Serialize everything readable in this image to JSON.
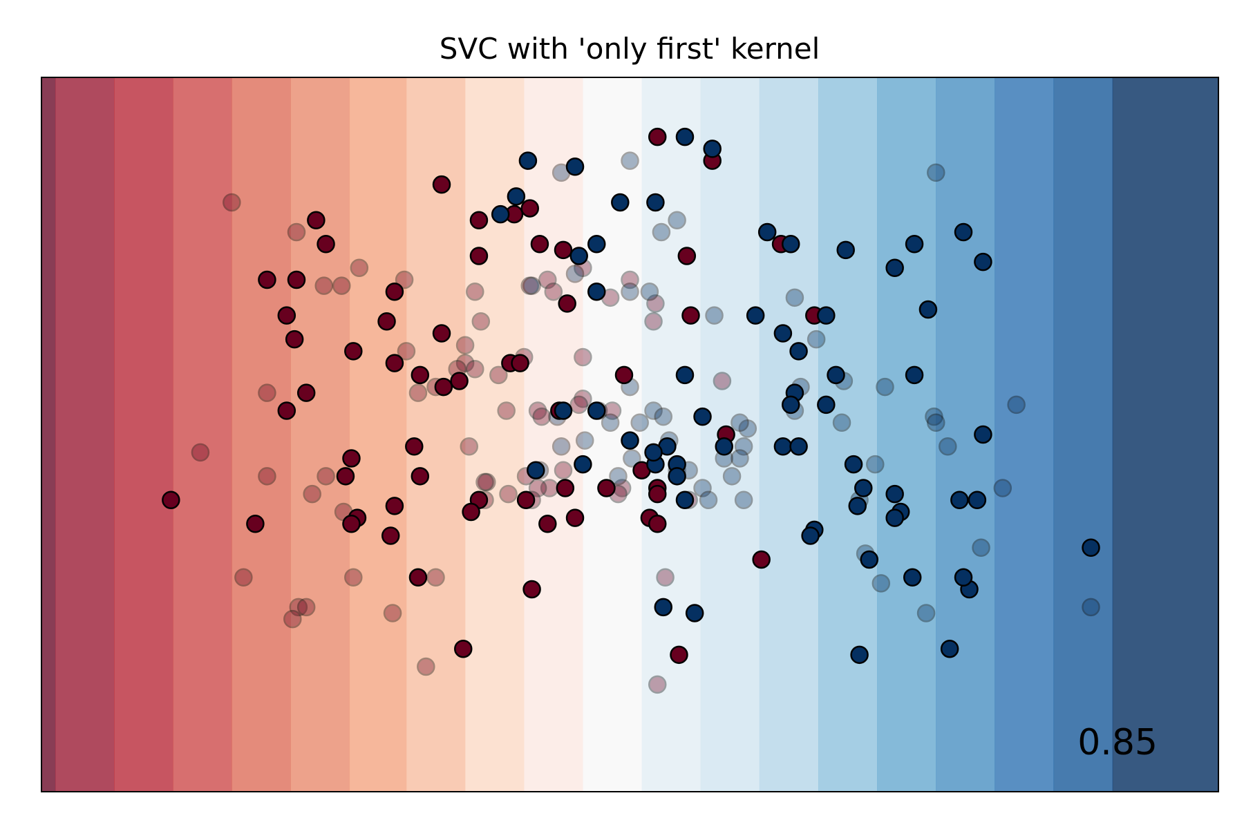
{
  "chart_data": {
    "type": "scatter",
    "title": "SVC with 'only first' kernel",
    "xlabel": "",
    "ylabel": "",
    "show_ticks": false,
    "grid": false,
    "xlim": [
      -3.0,
      3.0
    ],
    "ylim": [
      -3.0,
      3.0
    ],
    "score_text": "0.85",
    "score_position": "bottom-right",
    "background": {
      "kind": "filled-contour",
      "colormap": "RdBu",
      "varies_along": "x",
      "bands": [
        {
          "x0": -3.0,
          "x1": -2.93,
          "color": "#6b0d2a"
        },
        {
          "x0": -2.93,
          "x1": -2.63,
          "color": "#9b1d36"
        },
        {
          "x0": -2.63,
          "x1": -2.33,
          "color": "#b92b3a"
        },
        {
          "x0": -2.33,
          "x1": -2.03,
          "color": "#cd4b4b"
        },
        {
          "x0": -2.03,
          "x1": -1.73,
          "color": "#dd6e5a"
        },
        {
          "x0": -1.73,
          "x1": -1.43,
          "color": "#e98b6e"
        },
        {
          "x0": -1.43,
          "x1": -1.14,
          "color": "#f4a582"
        },
        {
          "x0": -1.14,
          "x1": -0.84,
          "color": "#f7bea1"
        },
        {
          "x0": -0.84,
          "x1": -0.54,
          "color": "#fbd9c6"
        },
        {
          "x0": -0.54,
          "x1": -0.24,
          "color": "#fbe9e2"
        },
        {
          "x0": -0.24,
          "x1": 0.06,
          "color": "#f7f7f7"
        },
        {
          "x0": 0.06,
          "x1": 0.36,
          "color": "#e2edf4"
        },
        {
          "x0": 0.36,
          "x1": 0.66,
          "color": "#d1e5f0"
        },
        {
          "x0": 0.66,
          "x1": 0.96,
          "color": "#b5d6e8"
        },
        {
          "x0": 0.96,
          "x1": 1.26,
          "color": "#8fc2dd"
        },
        {
          "x0": 1.26,
          "x1": 1.56,
          "color": "#67a9cf"
        },
        {
          "x0": 1.56,
          "x1": 1.86,
          "color": "#4a90c2"
        },
        {
          "x0": 1.86,
          "x1": 2.16,
          "color": "#2f73b3"
        },
        {
          "x0": 2.16,
          "x1": 2.46,
          "color": "#195a9a"
        },
        {
          "x0": 2.46,
          "x1": 3.0,
          "color": "#053061"
        }
      ],
      "opacity": 0.8
    },
    "series": [
      {
        "set": "train",
        "class": 0,
        "color": "#67001f",
        "opacity": 1.0,
        "points": [
          [
            0.14,
            2.5
          ],
          [
            -0.96,
            2.1
          ],
          [
            -1.6,
            1.8
          ],
          [
            -1.55,
            1.6
          ],
          [
            -1.7,
            1.3
          ],
          [
            -1.85,
            1.3
          ],
          [
            -1.2,
            1.2
          ],
          [
            -0.77,
            1.8
          ],
          [
            -0.77,
            1.5
          ],
          [
            -0.59,
            1.85
          ],
          [
            -0.51,
            1.9
          ],
          [
            -0.46,
            1.6
          ],
          [
            -0.34,
            1.55
          ],
          [
            -0.32,
            1.1
          ],
          [
            0.29,
            1.5
          ],
          [
            0.42,
            2.3
          ],
          [
            0.77,
            1.6
          ],
          [
            0.31,
            1.0
          ],
          [
            0.94,
            1.0
          ],
          [
            -1.75,
            1.0
          ],
          [
            -1.71,
            0.8
          ],
          [
            -1.24,
            0.95
          ],
          [
            -0.96,
            0.85
          ],
          [
            -1.41,
            0.7
          ],
          [
            -1.2,
            0.6
          ],
          [
            -1.07,
            0.5
          ],
          [
            -0.61,
            0.6
          ],
          [
            -0.95,
            0.4
          ],
          [
            -0.87,
            0.45
          ],
          [
            -0.56,
            0.6
          ],
          [
            -0.03,
            0.5
          ],
          [
            -0.36,
            0.2
          ],
          [
            -1.75,
            0.2
          ],
          [
            -1.65,
            0.35
          ],
          [
            -1.42,
            -0.2
          ],
          [
            -1.1,
            -0.1
          ],
          [
            -1.45,
            -0.35
          ],
          [
            -1.07,
            -0.35
          ],
          [
            -0.33,
            -0.45
          ],
          [
            -0.12,
            -0.45
          ],
          [
            -0.77,
            -0.55
          ],
          [
            -0.53,
            -0.55
          ],
          [
            0.06,
            -0.3
          ],
          [
            0.14,
            -0.45
          ],
          [
            0.14,
            -0.5
          ],
          [
            0.1,
            -0.7
          ],
          [
            0.14,
            -0.75
          ],
          [
            -2.34,
            -0.55
          ],
          [
            -1.91,
            -0.75
          ],
          [
            -1.39,
            -0.7
          ],
          [
            -1.42,
            -0.75
          ],
          [
            -1.2,
            -0.6
          ],
          [
            -1.22,
            -0.85
          ],
          [
            -0.81,
            -0.65
          ],
          [
            -0.28,
            -0.7
          ],
          [
            -0.42,
            -0.75
          ],
          [
            0.49,
            0.0
          ],
          [
            -1.08,
            -1.2
          ],
          [
            -0.5,
            -1.3
          ],
          [
            -0.85,
            -1.8
          ],
          [
            0.25,
            -1.85
          ],
          [
            0.67,
            -1.05
          ]
        ]
      },
      {
        "set": "train",
        "class": 1,
        "color": "#053061",
        "opacity": 1.0,
        "points": [
          [
            0.28,
            2.5
          ],
          [
            -0.05,
            1.95
          ],
          [
            0.13,
            1.95
          ],
          [
            -0.28,
            2.25
          ],
          [
            0.7,
            1.7
          ],
          [
            0.82,
            1.6
          ],
          [
            1.1,
            1.55
          ],
          [
            0.64,
            1.0
          ],
          [
            1.0,
            1.0
          ],
          [
            1.45,
            1.6
          ],
          [
            1.35,
            1.4
          ],
          [
            1.7,
            1.7
          ],
          [
            1.8,
            1.45
          ],
          [
            1.52,
            1.05
          ],
          [
            1.45,
            0.5
          ],
          [
            0.78,
            0.85
          ],
          [
            0.86,
            0.7
          ],
          [
            0.84,
            0.35
          ],
          [
            0.82,
            0.25
          ],
          [
            1.0,
            0.25
          ],
          [
            1.05,
            0.5
          ],
          [
            0.28,
            0.5
          ],
          [
            0.37,
            0.15
          ],
          [
            0.48,
            -0.1
          ],
          [
            0.78,
            -0.1
          ],
          [
            0.86,
            -0.1
          ],
          [
            1.14,
            -0.25
          ],
          [
            0.13,
            -0.25
          ],
          [
            0.24,
            -0.25
          ],
          [
            0.24,
            -0.35
          ],
          [
            1.77,
            -0.55
          ],
          [
            1.8,
            0.0
          ],
          [
            1.35,
            -0.5
          ],
          [
            1.68,
            -0.55
          ],
          [
            1.19,
            -0.45
          ],
          [
            0.94,
            -0.8
          ],
          [
            1.16,
            -0.6
          ],
          [
            1.38,
            -0.65
          ],
          [
            1.35,
            -0.7
          ],
          [
            -0.52,
            2.3
          ],
          [
            0.42,
            2.4
          ],
          [
            -0.66,
            1.85
          ],
          [
            -0.58,
            2.0
          ],
          [
            -0.34,
            0.2
          ],
          [
            -0.17,
            0.2
          ],
          [
            -0.26,
            1.5
          ],
          [
            -0.17,
            1.6
          ],
          [
            -0.17,
            1.2
          ],
          [
            0.92,
            -0.85
          ],
          [
            1.22,
            -1.05
          ],
          [
            1.44,
            -1.2
          ],
          [
            1.63,
            -1.8
          ],
          [
            1.17,
            -1.85
          ],
          [
            0.17,
            -1.45
          ],
          [
            0.33,
            -1.5
          ],
          [
            1.73,
            -1.3
          ],
          [
            1.7,
            -1.2
          ],
          [
            2.35,
            -0.95
          ],
          [
            -0.48,
            -0.3
          ],
          [
            -0.24,
            -0.25
          ],
          [
            0.19,
            -0.1
          ],
          [
            0.12,
            -0.15
          ],
          [
            0.28,
            -0.55
          ],
          [
            0.0,
            -0.05
          ]
        ]
      },
      {
        "set": "test",
        "class": 0,
        "color": "#67001f",
        "opacity": 0.35,
        "points": [
          [
            -2.03,
            1.95
          ],
          [
            -1.7,
            1.7
          ],
          [
            -1.38,
            1.4
          ],
          [
            -1.47,
            1.25
          ],
          [
            -1.56,
            1.25
          ],
          [
            -1.15,
            1.3
          ],
          [
            -1.14,
            0.7
          ],
          [
            -0.84,
            0.6
          ],
          [
            -0.84,
            0.75
          ],
          [
            -1.85,
            -0.35
          ],
          [
            -1.85,
            0.35
          ],
          [
            -1.08,
            0.35
          ],
          [
            -0.99,
            0.4
          ],
          [
            -0.79,
            0.55
          ],
          [
            -0.79,
            1.2
          ],
          [
            -0.76,
            0.95
          ],
          [
            -0.24,
            1.4
          ],
          [
            -0.42,
            1.3
          ],
          [
            -0.51,
            1.25
          ],
          [
            -0.39,
            1.2
          ],
          [
            0.0,
            1.3
          ],
          [
            0.12,
            0.95
          ],
          [
            0.13,
            1.1
          ],
          [
            -0.09,
            0.2
          ],
          [
            -0.24,
            0.3
          ],
          [
            -0.26,
            0.25
          ],
          [
            -0.47,
            0.2
          ],
          [
            -0.63,
            0.2
          ],
          [
            -0.67,
            0.5
          ],
          [
            -0.82,
            -0.1
          ],
          [
            -0.62,
            -0.5
          ],
          [
            -0.73,
            -0.4
          ],
          [
            -0.74,
            -0.4
          ],
          [
            -0.53,
            -0.35
          ],
          [
            -0.41,
            -0.45
          ],
          [
            -0.04,
            -0.45
          ],
          [
            -1.62,
            -0.5
          ],
          [
            -1.46,
            -0.65
          ],
          [
            -0.74,
            -0.55
          ],
          [
            -0.99,
            -1.2
          ],
          [
            -1.69,
            -1.45
          ],
          [
            -1.65,
            -1.45
          ],
          [
            -1.41,
            -1.2
          ],
          [
            -0.24,
            0.65
          ],
          [
            -0.54,
            0.65
          ],
          [
            -2.19,
            -0.15
          ],
          [
            -0.88,
            0.55
          ],
          [
            -0.1,
            1.15
          ],
          [
            -1.21,
            -1.5
          ],
          [
            -1.97,
            -1.2
          ],
          [
            -0.34,
            -0.3
          ],
          [
            -0.45,
            0.15
          ],
          [
            -0.06,
            -0.5
          ],
          [
            0.47,
            0.45
          ],
          [
            -0.47,
            -0.45
          ],
          [
            -1.55,
            -0.35
          ],
          [
            0.18,
            -1.2
          ],
          [
            -0.5,
            -0.55
          ],
          [
            -1.72,
            -1.55
          ],
          [
            -1.04,
            -1.95
          ],
          [
            0.14,
            -2.1
          ],
          [
            0.3,
            -0.55
          ]
        ]
      },
      {
        "set": "test",
        "class": 1,
        "color": "#053061",
        "opacity": 0.35,
        "points": [
          [
            1.56,
            2.2
          ],
          [
            0.0,
            2.3
          ],
          [
            -0.35,
            2.2
          ],
          [
            0.24,
            1.8
          ],
          [
            0.16,
            1.7
          ],
          [
            0.84,
            1.15
          ],
          [
            0.95,
            0.8
          ],
          [
            0.0,
            1.2
          ],
          [
            0.1,
            1.2
          ],
          [
            -0.5,
            1.25
          ],
          [
            0.43,
            1.0
          ],
          [
            0.87,
            0.4
          ],
          [
            0.84,
            0.2
          ],
          [
            0.6,
            0.05
          ],
          [
            1.3,
            0.4
          ],
          [
            1.55,
            0.15
          ],
          [
            0.0,
            0.4
          ],
          [
            0.12,
            0.2
          ],
          [
            0.05,
            0.1
          ],
          [
            -0.1,
            0.1
          ],
          [
            0.48,
            -0.2
          ],
          [
            0.58,
            -0.1
          ],
          [
            0.56,
            0.1
          ],
          [
            1.08,
            0.1
          ],
          [
            1.09,
            0.45
          ],
          [
            1.56,
            0.1
          ],
          [
            1.25,
            -0.25
          ],
          [
            1.2,
            -1.0
          ],
          [
            1.28,
            -1.25
          ],
          [
            1.17,
            -0.55
          ],
          [
            0.37,
            -0.45
          ],
          [
            0.24,
            -0.3
          ],
          [
            0.56,
            -0.2
          ],
          [
            0.2,
            -0.05
          ],
          [
            0.52,
            -0.35
          ],
          [
            1.51,
            -1.5
          ],
          [
            2.35,
            -1.45
          ],
          [
            1.79,
            -0.95
          ],
          [
            1.62,
            -0.1
          ],
          [
            1.9,
            -0.45
          ],
          [
            0.3,
            -0.3
          ],
          [
            0.4,
            -0.55
          ],
          [
            0.58,
            -0.55
          ],
          [
            -0.46,
            -0.3
          ],
          [
            -0.06,
            -0.35
          ],
          [
            -0.23,
            -0.05
          ],
          [
            -0.35,
            -0.1
          ],
          [
            0.01,
            -0.2
          ],
          [
            0.17,
            0.15
          ],
          [
            -0.37,
            0.15
          ],
          [
            -0.16,
            0.2
          ],
          [
            -0.28,
            1.35
          ],
          [
            1.97,
            0.25
          ]
        ]
      }
    ]
  }
}
